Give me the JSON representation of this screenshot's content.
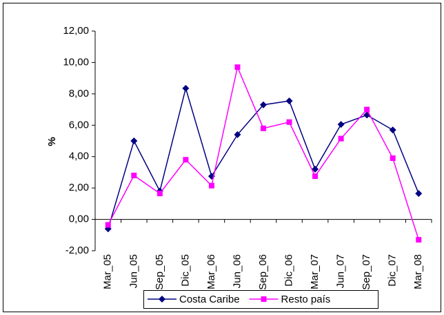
{
  "chart_data": {
    "type": "line",
    "y_label": "%",
    "categories": [
      "Mar_05",
      "Jun_05",
      "Sep_05",
      "Dic_05",
      "Mar_06",
      "Jun_06",
      "Sep_06",
      "Dic_06",
      "Mar_07",
      "Jun_07",
      "Sep_07",
      "Dic_07",
      "Mar_08"
    ],
    "series": [
      {
        "name": "Costa Caribe",
        "color": "#000080",
        "marker": "diamond",
        "values": [
          -0.6,
          5.0,
          1.8,
          8.35,
          2.75,
          5.4,
          7.3,
          7.55,
          3.2,
          6.05,
          6.65,
          5.7,
          1.65
        ]
      },
      {
        "name": "Resto país",
        "color": "#ff00ff",
        "marker": "square",
        "values": [
          -0.35,
          2.8,
          1.65,
          3.8,
          2.15,
          9.7,
          5.8,
          6.2,
          2.75,
          5.15,
          7.0,
          3.9,
          -1.3
        ]
      }
    ],
    "ylim": [
      -2,
      12
    ],
    "yticks": [
      {
        "value": -2,
        "label": "-2,00"
      },
      {
        "value": 0,
        "label": "0,00"
      },
      {
        "value": 2,
        "label": "2,00"
      },
      {
        "value": 4,
        "label": "4,00"
      },
      {
        "value": 6,
        "label": "6,00"
      },
      {
        "value": 8,
        "label": "8,00"
      },
      {
        "value": 10,
        "label": "10,00"
      },
      {
        "value": 12,
        "label": "12,00"
      }
    ],
    "grid": false,
    "legend": "bottom"
  }
}
